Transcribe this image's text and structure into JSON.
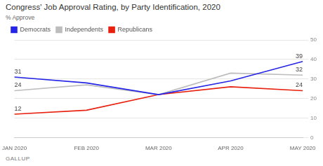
{
  "chart_data": {
    "type": "line",
    "title": "Congress' Job Approval Rating, by Party Identification, 2020",
    "subtitle": "% Approve",
    "footer": "GALLUP",
    "categories": [
      "JAN 2020",
      "FEB 2020",
      "MAR 2020",
      "APR 2020",
      "MAY 2020"
    ],
    "series": [
      {
        "name": "Democrats",
        "color": "#2525e8",
        "values": [
          31,
          28,
          22,
          29,
          39
        ],
        "value_labels": [
          "31",
          null,
          null,
          null,
          "39"
        ]
      },
      {
        "name": "Independents",
        "color": "#bdbdbd",
        "values": [
          24,
          27,
          22,
          33,
          32
        ],
        "value_labels": [
          "24",
          null,
          null,
          null,
          "32"
        ]
      },
      {
        "name": "Republicans",
        "color": "#e8210f",
        "values": [
          12,
          14,
          22,
          26,
          24
        ],
        "value_labels": [
          "12",
          null,
          null,
          null,
          "24"
        ]
      }
    ],
    "ylim": [
      0,
      50
    ],
    "yticks": [
      0,
      10,
      20,
      30,
      40,
      50
    ],
    "grid": true,
    "legend": "top-left",
    "data_labels": true
  }
}
